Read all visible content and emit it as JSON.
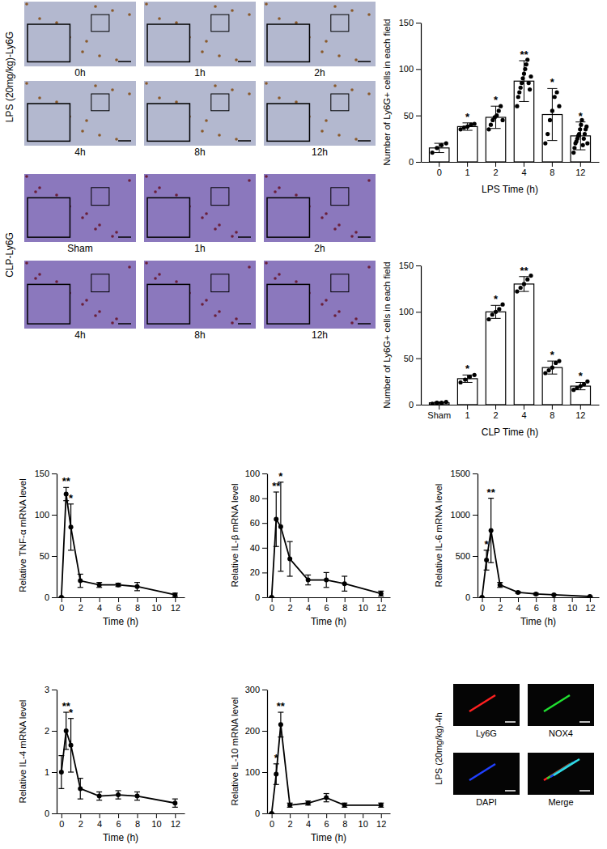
{
  "chart_data": [
    {
      "type": "bar",
      "x_label": "LPS Time (h)",
      "y_label": "Number of Ly6G+ cells in each field",
      "categories": [
        "0",
        "1",
        "2",
        "4",
        "8",
        "12"
      ],
      "values": [
        15,
        38,
        48,
        87,
        51,
        28
      ],
      "errors": [
        5,
        4,
        12,
        22,
        28,
        15
      ],
      "significance": [
        null,
        "*",
        "*",
        "**",
        "*",
        "*"
      ],
      "points": [
        [
          10,
          15,
          18,
          20
        ],
        [
          35,
          37,
          38,
          40,
          41
        ],
        [
          35,
          40,
          45,
          48,
          50,
          55,
          60,
          45
        ],
        [
          60,
          70,
          75,
          80,
          85,
          90,
          95,
          100,
          105,
          110,
          85,
          78,
          92
        ],
        [
          20,
          30,
          45,
          55,
          70,
          75,
          60
        ],
        [
          10,
          15,
          20,
          22,
          25,
          28,
          30,
          35,
          40,
          45,
          18,
          25,
          30,
          35,
          38,
          20
        ]
      ],
      "color": "#ffffff",
      "ylim": [
        0,
        150
      ],
      "yticks": [
        0,
        50,
        100,
        150
      ]
    },
    {
      "type": "bar",
      "x_label": "CLP Time (h)",
      "y_label": "Number of Ly6G+ cells in each field",
      "categories": [
        "Sham",
        "1",
        "2",
        "4",
        "8",
        "12"
      ],
      "values": [
        2,
        28,
        100,
        130,
        40,
        20
      ],
      "errors": [
        1,
        4,
        7,
        8,
        7,
        4
      ],
      "significance": [
        null,
        "*",
        "*",
        "**",
        "*",
        "*"
      ],
      "points": [
        [
          1,
          2,
          2,
          3
        ],
        [
          24,
          27,
          30,
          32
        ],
        [
          92,
          97,
          100,
          103,
          108
        ],
        [
          122,
          126,
          130,
          135,
          139
        ],
        [
          34,
          37,
          40,
          45,
          47
        ],
        [
          16,
          18,
          20,
          22,
          25
        ]
      ],
      "color": "#ffffff",
      "ylim": [
        0,
        150
      ],
      "yticks": [
        0,
        50,
        100,
        150
      ]
    },
    {
      "type": "line",
      "x_label": "Time (h)",
      "y_label": "Relative TNF-α mRNA level",
      "x": [
        0,
        0.5,
        1,
        2,
        4,
        6,
        8,
        12
      ],
      "values": [
        0,
        125,
        85,
        20,
        15,
        15,
        13,
        3
      ],
      "errors": [
        0,
        8,
        28,
        8,
        3,
        2,
        5,
        2
      ],
      "significance": [
        null,
        "**",
        "*",
        null,
        null,
        null,
        null,
        null
      ],
      "color": "#000000",
      "marker": "circle",
      "xlim": [
        -0.5,
        13
      ],
      "xticks": [
        0,
        2,
        4,
        6,
        8,
        10,
        12
      ],
      "ylim": [
        0,
        150
      ],
      "yticks": [
        0,
        50,
        100,
        150
      ]
    },
    {
      "type": "line",
      "x_label": "Time (h)",
      "y_label": "Relative IL-β mRNA level",
      "x": [
        0,
        0.5,
        1,
        2,
        4,
        6,
        8,
        12
      ],
      "values": [
        0,
        63,
        57,
        31,
        14,
        14,
        11,
        3
      ],
      "errors": [
        0,
        22,
        36,
        14,
        4,
        6,
        6,
        2
      ],
      "significance": [
        null,
        "**",
        "*",
        null,
        null,
        null,
        null,
        null
      ],
      "color": "#000000",
      "marker": "circle",
      "xlim": [
        -0.5,
        13
      ],
      "xticks": [
        0,
        2,
        4,
        6,
        8,
        10,
        12
      ],
      "ylim": [
        0,
        100
      ],
      "yticks": [
        0,
        20,
        40,
        60,
        80,
        100
      ]
    },
    {
      "type": "line",
      "x_label": "Time (h)",
      "y_label": "Relative IL-6 mRNA level",
      "x": [
        0,
        0.5,
        1,
        2,
        4,
        6,
        8,
        12
      ],
      "values": [
        0,
        450,
        810,
        150,
        60,
        40,
        30,
        10
      ],
      "errors": [
        0,
        120,
        390,
        30,
        10,
        10,
        5,
        5
      ],
      "significance": [
        null,
        "*",
        "**",
        null,
        null,
        null,
        null,
        null
      ],
      "color": "#000000",
      "marker": "circle",
      "xlim": [
        -0.5,
        13
      ],
      "xticks": [
        0,
        2,
        4,
        6,
        8,
        10,
        12
      ],
      "ylim": [
        0,
        1500
      ],
      "yticks": [
        0,
        500,
        1000,
        1500
      ]
    },
    {
      "type": "line",
      "x_label": "Time (h)",
      "y_label": "Relative IL-4 mRNA level",
      "x": [
        0,
        0.5,
        1,
        2,
        4,
        6,
        8,
        12
      ],
      "values": [
        1,
        2,
        1.65,
        0.6,
        0.42,
        0.45,
        0.42,
        0.25
      ],
      "errors": [
        0.4,
        0.45,
        0.65,
        0.25,
        0.1,
        0.1,
        0.1,
        0.1
      ],
      "significance": [
        null,
        "**",
        "*",
        null,
        null,
        null,
        null,
        null
      ],
      "color": "#000000",
      "marker": "circle",
      "xlim": [
        -0.5,
        13
      ],
      "xticks": [
        0,
        2,
        4,
        6,
        8,
        10,
        12
      ],
      "ylim": [
        0,
        3
      ],
      "yticks": [
        0,
        1,
        2,
        3
      ]
    },
    {
      "type": "line",
      "x_label": "Time (h)",
      "y_label": "Relative IL-10 mRNA level",
      "x": [
        0,
        0.5,
        1,
        2,
        4,
        6,
        8,
        12
      ],
      "values": [
        0,
        95,
        215,
        20,
        25,
        38,
        20,
        20
      ],
      "errors": [
        0,
        25,
        30,
        5,
        5,
        10,
        5,
        5
      ],
      "significance": [
        null,
        "*",
        "**",
        null,
        null,
        null,
        null,
        null
      ],
      "color": "#000000",
      "marker": "circle",
      "xlim": [
        -0.5,
        13
      ],
      "xticks": [
        0,
        2,
        4,
        6,
        8,
        10,
        12
      ],
      "ylim": [
        0,
        300
      ],
      "yticks": [
        0,
        100,
        200,
        300
      ]
    }
  ],
  "image_panels": [
    {
      "label": "LPS (20mg/kg)-Ly6G",
      "captions": [
        "0h",
        "1h",
        "2h",
        "4h",
        "8h",
        "12h"
      ]
    },
    {
      "label": "CLP-Ly6G",
      "captions": [
        "Sham",
        "1h",
        "2h",
        "4h",
        "8h",
        "12h"
      ]
    },
    {
      "label": "LPS (20mg/kg)-4h",
      "captions": [
        "Ly6G",
        "NOX4",
        "DAPI",
        "Merge"
      ]
    }
  ]
}
